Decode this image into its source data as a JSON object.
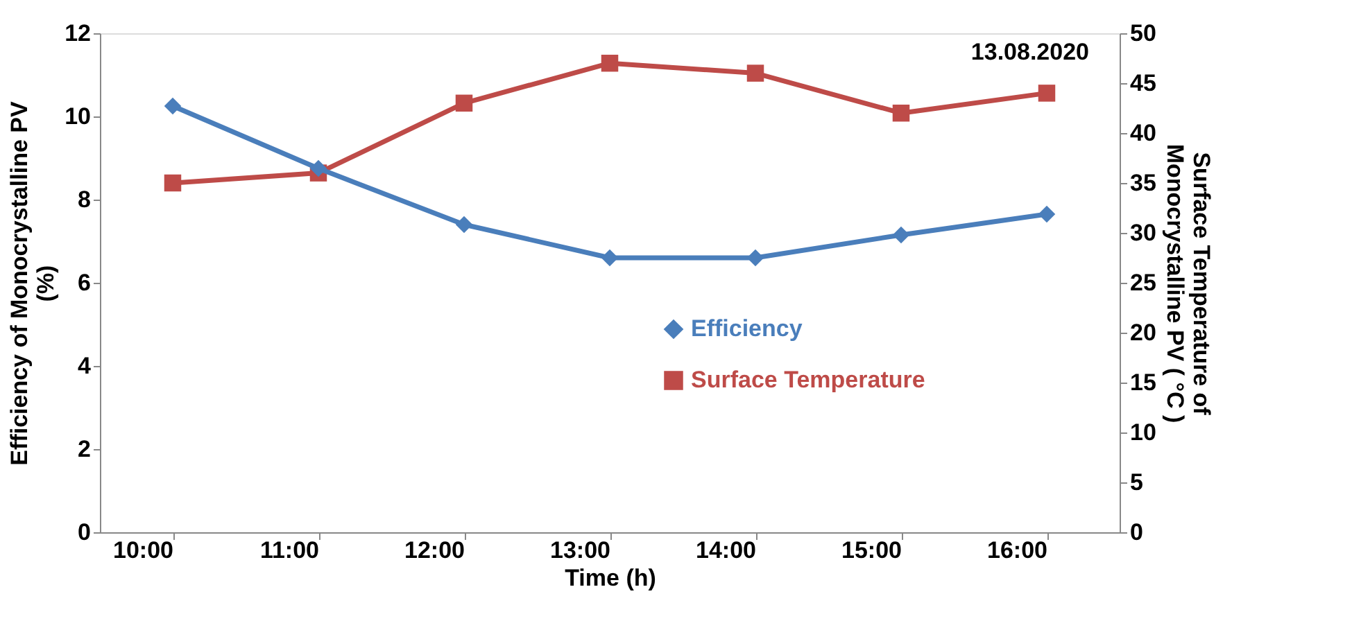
{
  "chart_data": {
    "type": "line",
    "xlabel": "Time (h)",
    "ylabel": "Efficiency of Monocrystalline PV (%)",
    "y2label": "Surface Temperature of Monocrystalline PV ( °C )",
    "categories": [
      "10:00",
      "11:00",
      "12:00",
      "13:00",
      "14:00",
      "15:00",
      "16:00"
    ],
    "series": [
      {
        "name": "Efficiency",
        "color": "#4a7ebb",
        "marker": "diamond",
        "values": [
          10.25,
          8.75,
          7.4,
          6.6,
          6.6,
          7.15,
          7.65
        ]
      },
      {
        "name": "Surface Temperature",
        "color": "#be4b48",
        "marker": "square",
        "axis": "y2",
        "values": [
          35,
          36,
          43,
          47,
          46,
          42,
          44
        ]
      }
    ],
    "ylim": [
      0,
      12
    ],
    "yticks": [
      0,
      2,
      4,
      6,
      8,
      10,
      12
    ],
    "y2lim": [
      0,
      50
    ],
    "y2ticks": [
      0,
      5,
      10,
      15,
      20,
      25,
      30,
      35,
      40,
      45,
      50
    ],
    "annotations": [
      "13.08.2020"
    ],
    "grid": false,
    "legend": "right"
  }
}
